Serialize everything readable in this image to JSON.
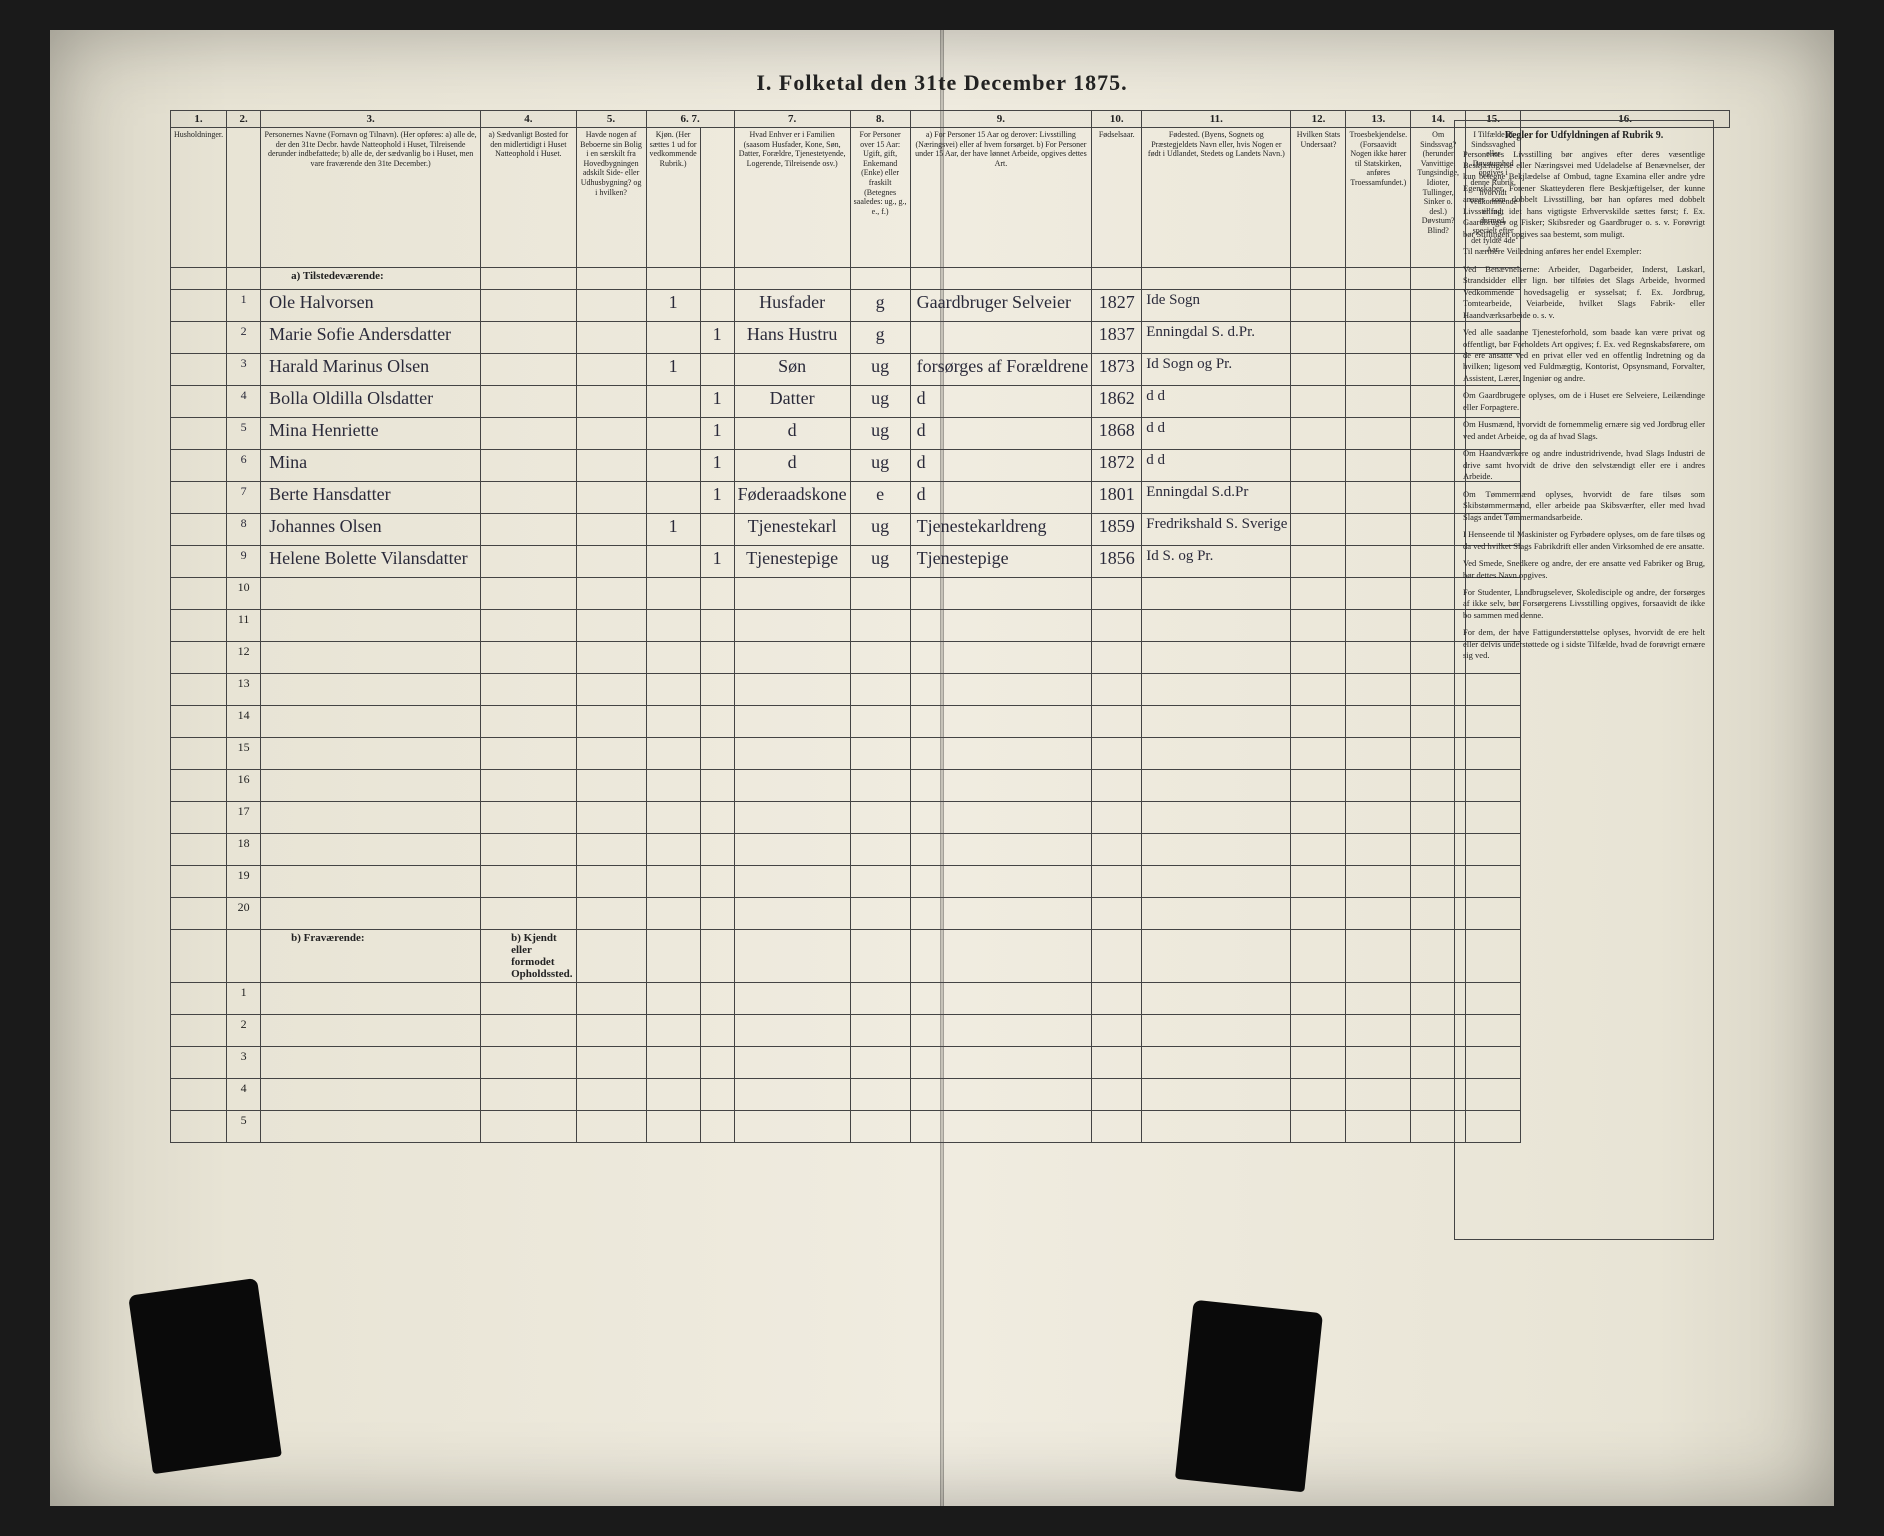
{
  "title": "I.  Folketal den 31te December 1875.",
  "colnums": [
    "1.",
    "2.",
    "3.",
    "4.",
    "5.",
    "6.",
    "7.",
    "8.",
    "9.",
    "10.",
    "11.",
    "12.",
    "13.",
    "14.",
    "15.",
    "16."
  ],
  "headers": {
    "c1": "Husholdninger.",
    "c2": "",
    "c3": "Personernes Navne (Fornavn og Tilnavn).\n(Her opføres:\na) alle de, der den 31te Decbr. havde Natteophold i Huset, Tilreisende derunder indbefattede;\nb) alle de, der sædvanlig bo i Huset, men vare fraværende den 31te December.)",
    "c4": "a) Sædvanligt Bosted for den midlertidigt i Huset Natteophold i Huset.",
    "c5": "Havde nogen af Beboerne sin Bolig i en særskilt fra Hovedbygningen adskilt Side- eller Udhusbygning? og i hvilken?",
    "c6": "Kjøn. (Her sættes 1 ud for vedkommende Rubrik.)",
    "c7": "",
    "c8": "Hvad Enhver er i Familien (saasom Husfader, Kone, Søn, Datter, Forældre, Tjenestetyende, Logerende, Tilreisende osv.)",
    "c9": "For Personer over 15 Aar: Ugift, gift, Enkemand (Enke) eller fraskilt (Betegnes saaledes: ug., g., e., f.)",
    "c9b": "a) For Personer 15 Aar og derover: Livsstilling (Næringsvei) eller af hvem forsørget.\nb) For Personer under 15 Aar, der have lønnet Arbeide, opgives dettes Art.",
    "c10": "Fødselsaar.",
    "c11": "Fødested. (Byens, Sognets og Præstegjeldets Navn eller, hvis Nogen er født i Udlandet, Stedets og Landets Navn.)",
    "c12": "Hvilken Stats Undersaat?",
    "c13": "Troesbekjendelse. (Forsaavidt Nogen ikke hører til Statskirken, anføres Troessamfundet.)",
    "c14": "Om Sindssvag? (herunder Vanvittige, Tungsindige, Idioter, Tullinger, Sinker o. desl.) Døvstum? Blind?",
    "c15": "I Tilfælde af Sindssvaghed eller Døvstumhed opgives i denne Rubrik, hvorvidt Vedkommende er født dermed, specielt efter det fyldte 4de Aar.",
    "c16": "Regler for Udfyldningen af Rubrik 9."
  },
  "section_a": "a) Tilstedeværende:",
  "section_b": "b) Fraværende:",
  "section_b_col4": "b) Kjendt eller formodet Opholdssted.",
  "rows": [
    {
      "n": "1",
      "name": "Ole Halvorsen",
      "m": "1",
      "k": "",
      "rel": "Husfader",
      "ms": "g",
      "occ": "Gaardbruger Selveier",
      "yr": "1827",
      "place": "Ide Sogn"
    },
    {
      "n": "2",
      "name": "Marie Sofie Andersdatter",
      "m": "",
      "k": "1",
      "rel": "Hans Hustru",
      "ms": "g",
      "occ": "",
      "yr": "1837",
      "place": "Enningdal S. d.Pr."
    },
    {
      "n": "3",
      "name": "Harald Marinus Olsen",
      "m": "1",
      "k": "",
      "rel": "Søn",
      "ms": "ug",
      "occ": "forsørges af Forældrene",
      "yr": "1873",
      "place": "Id Sogn og Pr."
    },
    {
      "n": "4",
      "name": "Bolla Oldilla Olsdatter",
      "m": "",
      "k": "1",
      "rel": "Datter",
      "ms": "ug",
      "occ": "d",
      "yr": "1862",
      "place": "d      d"
    },
    {
      "n": "5",
      "name": "Mina Henriette",
      "m": "",
      "k": "1",
      "rel": "d",
      "ms": "ug",
      "occ": "d",
      "yr": "1868",
      "place": "d      d"
    },
    {
      "n": "6",
      "name": "Mina",
      "m": "",
      "k": "1",
      "rel": "d",
      "ms": "ug",
      "occ": "d",
      "yr": "1872",
      "place": "d      d"
    },
    {
      "n": "7",
      "name": "Berte Hansdatter",
      "m": "",
      "k": "1",
      "rel": "Føderaadskone",
      "ms": "e",
      "occ": "d",
      "yr": "1801",
      "place": "Enningdal S.d.Pr"
    },
    {
      "n": "8",
      "name": "Johannes Olsen",
      "m": "1",
      "k": "",
      "rel": "Tjenestekarl",
      "ms": "ug",
      "occ": "Tjenestekarldreng",
      "yr": "1859",
      "place": "Fredrikshald S. Sverige"
    },
    {
      "n": "9",
      "name": "Helene Bolette Vilansdatter",
      "m": "",
      "k": "1",
      "rel": "Tjenestepige",
      "ms": "ug",
      "occ": "Tjenestepige",
      "yr": "1856",
      "place": "Id S. og Pr."
    }
  ],
  "empty_a": [
    "10",
    "11",
    "12",
    "13",
    "14",
    "15",
    "16",
    "17",
    "18",
    "19",
    "20"
  ],
  "empty_b": [
    "1",
    "2",
    "3",
    "4",
    "5"
  ],
  "right_text": {
    "head": "Regler for Udfyldningen af Rubrik 9.",
    "paras": [
      "Personernes Livsstilling bør angives efter deres væsentlige Beskjæftigelse eller Næringsvei med Udeladelse af Benævnelser, der kun betegne Bekjlædelse af Ombud, tagne Examina eller andre ydre Egenskaber. Forener Skatteyderen flere Beskjæftigelser, der kunne ansees som dobbelt Livsstilling, bør han opføres med dobbelt Livsstilling, idet hans vigtigste Erhvervskilde sættes først; f. Ex. Gaardbruger og Fisker; Skibsreder og Gaardbruger o. s. v. Forøvrigt bør Stillingen opgives saa bestemt, som muligt.",
      "Til nærmere Veiledning anføres her endel Exempler:",
      "Ved Benævnelserne: Arbeider, Dagarbeider, Inderst, Løskarl, Strandsidder eller lign. bør tilføies det Slags Arbeide, hvormed Vedkommende hovedsagelig er sysselsat; f. Ex. Jordbrug, Tomtearbeide, Veiarbeide, hvilket Slags Fabrik- eller Haandværksarbeide o. s. v.",
      "Ved alle saadanne Tjenesteforhold, som baade kan være privat og offentligt, bør Forholdets Art opgives; f. Ex. ved Regnskabsførere, om de ere ansatte ved en privat eller ved en offentlig Indretning og da hvilken; ligesom ved Fuldmægtig, Kontorist, Opsynsmand, Forvalter, Assistent, Lærer, Ingeniør og andre.",
      "Om Gaardbrugere oplyses, om de i Huset ere Selveiere, Leilændinge eller Forpagtere.",
      "Om Husmænd, hvorvidt de fornemmelig ernære sig ved Jordbrug eller ved andet Arbeide, og da af hvad Slags.",
      "Om Haandværkere og andre industridrivende, hvad Slags Industri de drive samt hvorvidt de drive den selvstændigt eller ere i andres Arbeide.",
      "Om Tømmermænd oplyses, hvorvidt de fare tilsøs som Skibstømmermænd, eller arbeide paa Skibsværfter, eller med hvad Slags andet Tømmermandsarbeide.",
      "I Henseende til Maskinister og Fyrbødere oplyses, om de fare tilsøs og da ved hvilket Slags Fabrikdrift eller anden Virksomhed de ere ansatte.",
      "Ved Smede, Snedkere og andre, der ere ansatte ved Fabriker og Brug, bør dettes Navn opgives.",
      "For Studenter, Landbrugselever, Skoledisciple og andre, der forsørges af ikke selv, bør Forsørgerens Livsstilling opgives, forsaavidt de ikke bo sammen med denne.",
      "For dem, der have Fattigunderstøttelse oplyses, hvorvidt de ere helt eller delvis understøttede og i sidste Tilfælde, hvad de forøvrigt ernære sig ved."
    ]
  }
}
